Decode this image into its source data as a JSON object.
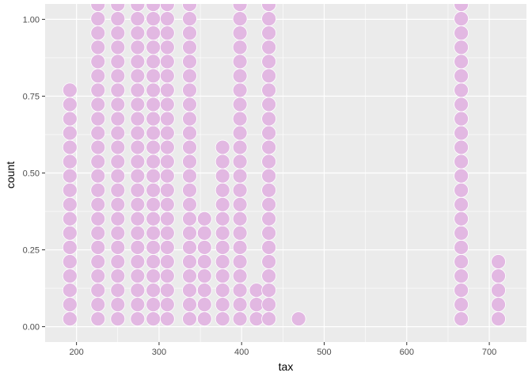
{
  "chart_data": {
    "type": "scatter",
    "style": "dotplot",
    "xlabel": "tax",
    "ylabel": "count",
    "x_ticks": [
      200,
      300,
      400,
      500,
      600,
      700
    ],
    "x_tick_labels": [
      "200",
      "300",
      "400",
      "500",
      "600",
      "700"
    ],
    "y_ticks": [
      0.0,
      0.25,
      0.5,
      0.75,
      1.0
    ],
    "y_tick_labels": [
      "0.00",
      "0.25",
      "0.50",
      "0.75",
      "1.00"
    ],
    "xlim": [
      162,
      745
    ],
    "ylim": [
      -0.05,
      1.05
    ],
    "grid": true,
    "colors": {
      "panel": "#EBEBEB",
      "grid": "#FFFFFF",
      "dot_fill": "#E2B8E2",
      "dot_stroke": "#FFFFFF",
      "text": "#4D4D4D",
      "title": "#000000"
    },
    "dot_step": 0.0465,
    "columns": [
      {
        "x": 192,
        "count": 17
      },
      {
        "x": 226,
        "count": 23
      },
      {
        "x": 250,
        "count": 23
      },
      {
        "x": 274,
        "count": 23
      },
      {
        "x": 293,
        "count": 23
      },
      {
        "x": 310,
        "count": 23
      },
      {
        "x": 337,
        "count": 23
      },
      {
        "x": 355,
        "count": 8
      },
      {
        "x": 377,
        "count": 13
      },
      {
        "x": 398,
        "count": 23
      },
      {
        "x": 418,
        "count": 3
      },
      {
        "x": 433,
        "count": 23
      },
      {
        "x": 469,
        "count": 1
      },
      {
        "x": 666,
        "count": 23
      },
      {
        "x": 711,
        "count": 5
      }
    ]
  }
}
